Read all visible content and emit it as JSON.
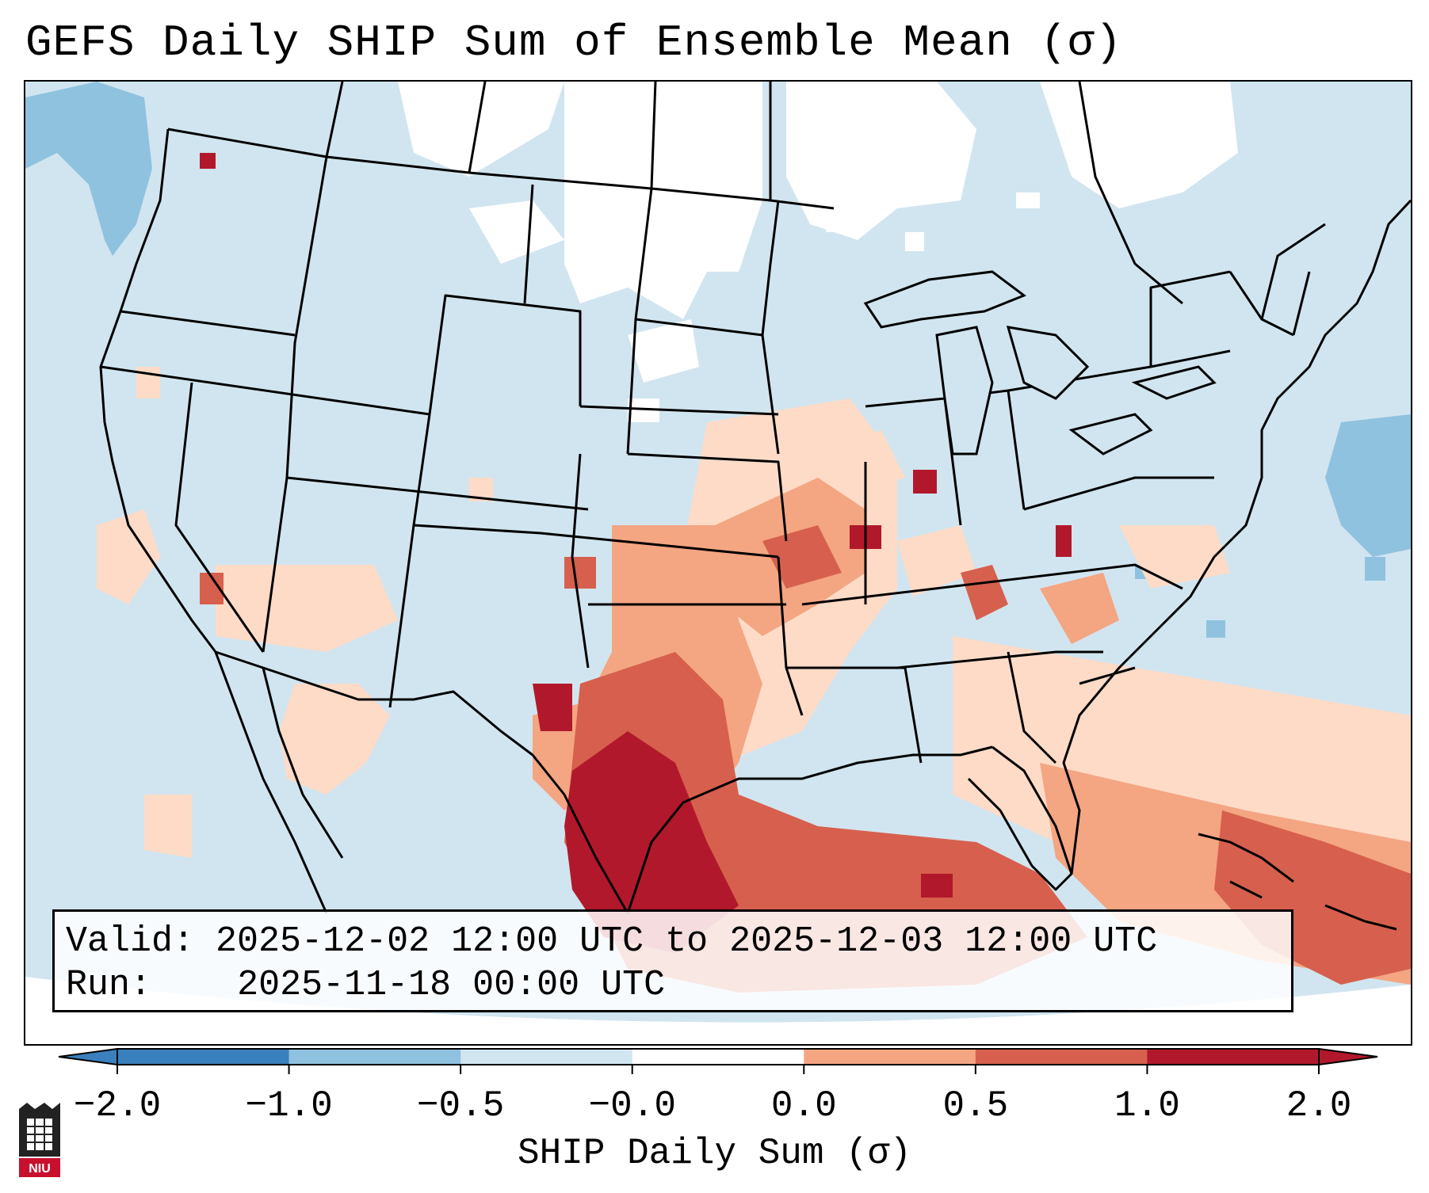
{
  "title": "GEFS Daily SHIP Sum of Ensemble Mean (σ)",
  "info": {
    "valid_label": "Valid:",
    "valid_value": "2025-12-02 12:00 UTC to 2025-12-03 12:00 UTC",
    "run_label": "Run:",
    "run_value": "2025-11-18 00:00 UTC"
  },
  "colorbar": {
    "label": "SHIP Daily Sum (σ)",
    "ticks": [
      "−2.0",
      "−1.0",
      "−0.5",
      "−0.0",
      "0.0",
      "0.5",
      "1.0",
      "2.0"
    ],
    "colors": [
      "#3a80bd",
      "#8fc2de",
      "#d1e5f0",
      "#ffffff",
      "#fddbc7",
      "#f4a582",
      "#d6604d",
      "#b2182b"
    ]
  },
  "logo": "NIU",
  "map": {
    "background": "#d1e5f0",
    "features": [
      "state-borders",
      "coastlines",
      "great-lakes",
      "caribbean-islands"
    ]
  }
}
